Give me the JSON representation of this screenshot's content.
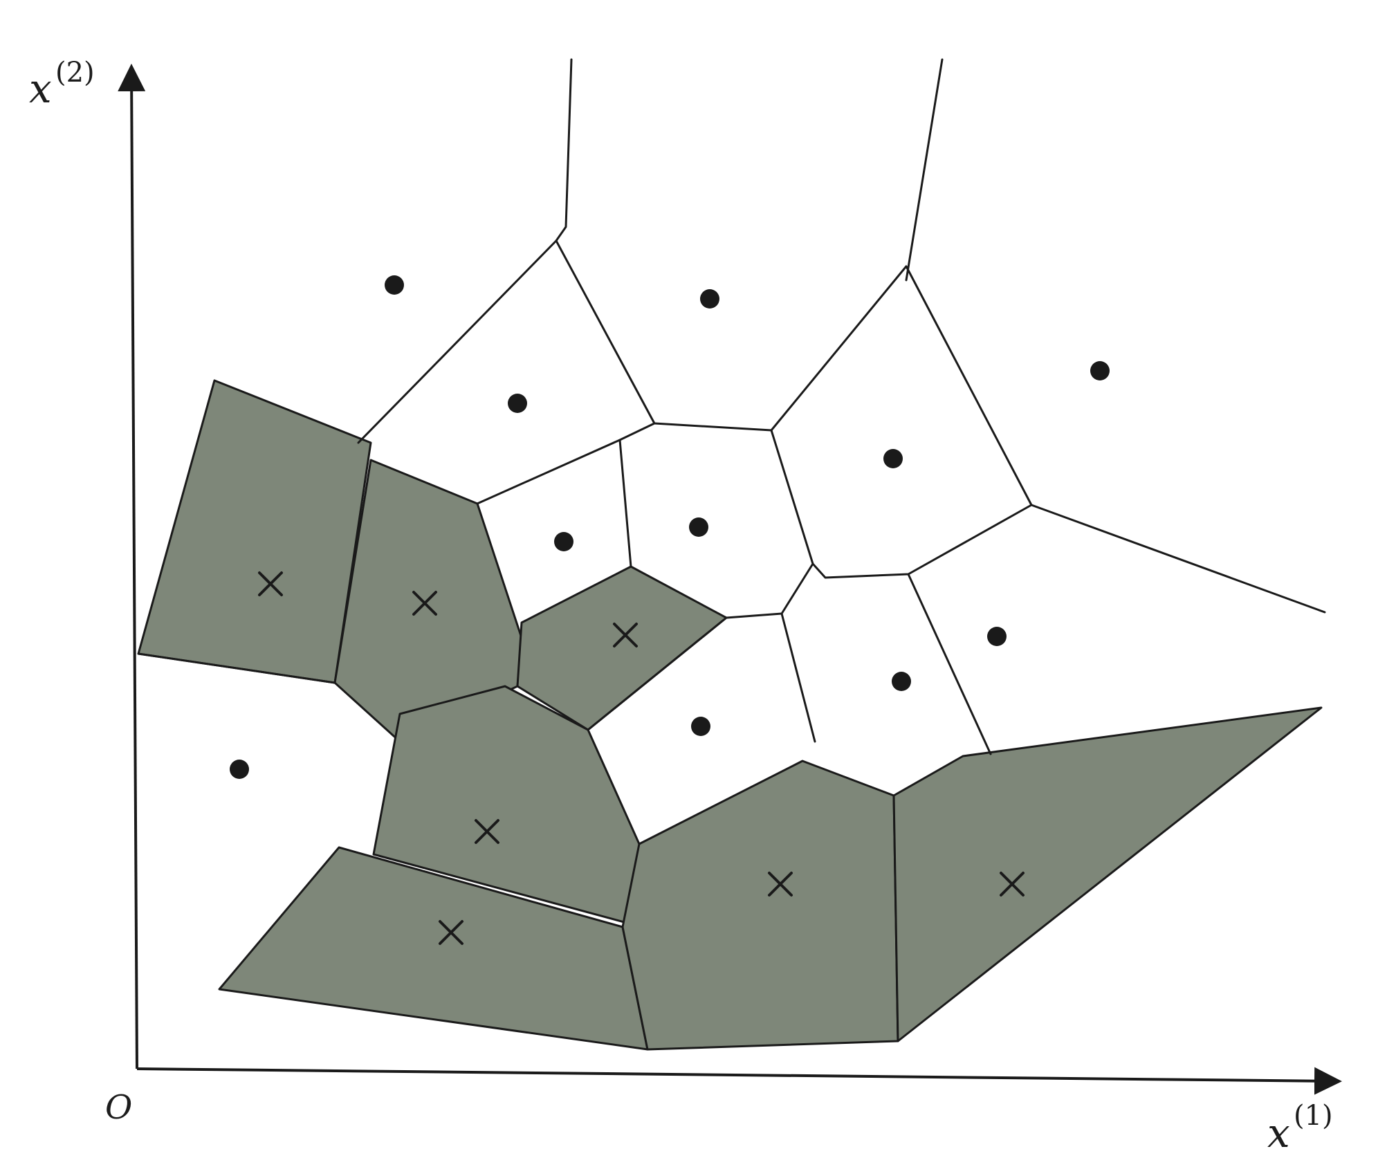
{
  "diagram": {
    "x_axis_label": "x",
    "x_axis_superscript": "(1)",
    "y_axis_label": "x",
    "y_axis_superscript": "(2)",
    "origin_label": "O"
  },
  "markers": {
    "dot": "filled-circle",
    "cross": "x-mark"
  },
  "colors": {
    "shaded_region": "#7e8779",
    "edge": "#1a1a1a",
    "background": "#ffffff"
  }
}
